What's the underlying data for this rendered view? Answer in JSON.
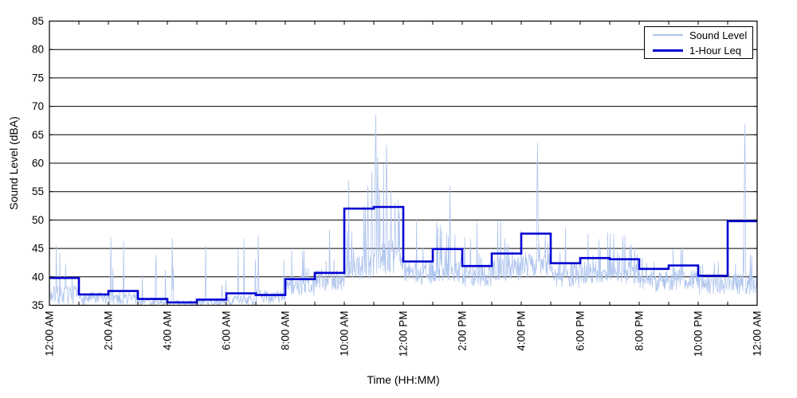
{
  "chart_data": {
    "type": "line",
    "title": "",
    "xlabel": "Time (HH:MM)",
    "ylabel": "Sound Level (dBA)",
    "ylim": [
      35,
      85
    ],
    "y_tick_step": 5,
    "y_ticks": [
      35,
      40,
      45,
      50,
      55,
      60,
      65,
      70,
      75,
      80,
      85
    ],
    "xlim_hours": [
      0,
      24
    ],
    "x_tick_hours": [
      0,
      2,
      4,
      6,
      8,
      10,
      12,
      14,
      16,
      18,
      20,
      22,
      24
    ],
    "x_tick_labels": [
      "12:00 AM",
      "2:00 AM",
      "4:00 AM",
      "6:00 AM",
      "8:00 AM",
      "10:00 AM",
      "12:00 PM",
      "2:00 PM",
      "4:00 PM",
      "6:00 PM",
      "8:00 PM",
      "10:00 PM",
      "12:00 AM"
    ],
    "minor_x_tick_every_hours": 1,
    "grid": "horizontal-solid-black",
    "grid_color": "#000000",
    "frame_color": "#000000",
    "text_color": "#000000",
    "legend": {
      "position": "top-right",
      "entries": [
        {
          "label": "Sound Level",
          "color": "#aec4ee",
          "line_width": 1.5
        },
        {
          "label": "1-Hour Leq",
          "color": "#0000d2",
          "line_width": 3
        }
      ]
    },
    "series": [
      {
        "name": "Sound Level",
        "type": "noisy-minute-trace",
        "color": "#aec4ee",
        "points_per_hour": 60,
        "synth_profile_per_hour": {
          "base": [
            36.8,
            36.2,
            36.3,
            35.6,
            35.3,
            35.5,
            35.9,
            36.5,
            38.4,
            39.5,
            41.5,
            43.5,
            40.8,
            41.3,
            40.3,
            41.3,
            42.0,
            40.3,
            40.8,
            40.8,
            39.4,
            39.6,
            38.7,
            38.8
          ],
          "band": [
            1.6,
            1.2,
            1.2,
            0.8,
            0.6,
            0.8,
            1.0,
            1.2,
            1.8,
            2.0,
            2.2,
            3.0,
            2.2,
            2.2,
            2.0,
            2.2,
            2.2,
            2.2,
            2.0,
            2.0,
            2.0,
            2.0,
            1.8,
            2.0
          ],
          "spike_prob": [
            0.12,
            0.06,
            0.06,
            0.04,
            0.03,
            0.04,
            0.06,
            0.06,
            0.07,
            0.08,
            0.1,
            0.12,
            0.08,
            0.08,
            0.07,
            0.08,
            0.09,
            0.07,
            0.08,
            0.07,
            0.06,
            0.06,
            0.06,
            0.07
          ],
          "spike_max": [
            46.5,
            45.5,
            47.0,
            44.0,
            46.0,
            46.0,
            47.0,
            47.5,
            45.0,
            48.5,
            58.0,
            60.0,
            50.0,
            53.0,
            48.5,
            50.0,
            52.0,
            49.0,
            49.0,
            48.0,
            47.0,
            46.5,
            46.0,
            48.0
          ]
        },
        "major_spikes": [
          {
            "minute": 125,
            "value": 47.0
          },
          {
            "minute": 250,
            "value": 46.8
          },
          {
            "minute": 318,
            "value": 45.5
          },
          {
            "minute": 425,
            "value": 47.3
          },
          {
            "minute": 570,
            "value": 48.3
          },
          {
            "minute": 640,
            "value": 52.5
          },
          {
            "minute": 648,
            "value": 56.0
          },
          {
            "minute": 656,
            "value": 58.5
          },
          {
            "minute": 664,
            "value": 68.5
          },
          {
            "minute": 668,
            "value": 61.0
          },
          {
            "minute": 672,
            "value": 55.5
          },
          {
            "minute": 686,
            "value": 63.2
          },
          {
            "minute": 695,
            "value": 55.0
          },
          {
            "minute": 710,
            "value": 53.5
          },
          {
            "minute": 815,
            "value": 56.0
          },
          {
            "minute": 870,
            "value": 49.5
          },
          {
            "minute": 993,
            "value": 63.5
          },
          {
            "minute": 1148,
            "value": 47.5
          },
          {
            "minute": 1415,
            "value": 66.8
          }
        ]
      },
      {
        "name": "1-Hour Leq",
        "type": "step-hourly",
        "color": "#0000d2",
        "hours": [
          0,
          1,
          2,
          3,
          4,
          5,
          6,
          7,
          8,
          9,
          10,
          11,
          12,
          13,
          14,
          15,
          16,
          17,
          18,
          19,
          20,
          21,
          22,
          23
        ],
        "values": [
          39.8,
          36.9,
          37.5,
          36.1,
          35.5,
          36.0,
          37.1,
          36.8,
          39.6,
          40.7,
          52.0,
          52.3,
          42.7,
          44.9,
          41.9,
          44.1,
          47.6,
          42.4,
          43.3,
          43.1,
          41.4,
          42.0,
          40.2,
          49.8
        ]
      }
    ]
  }
}
